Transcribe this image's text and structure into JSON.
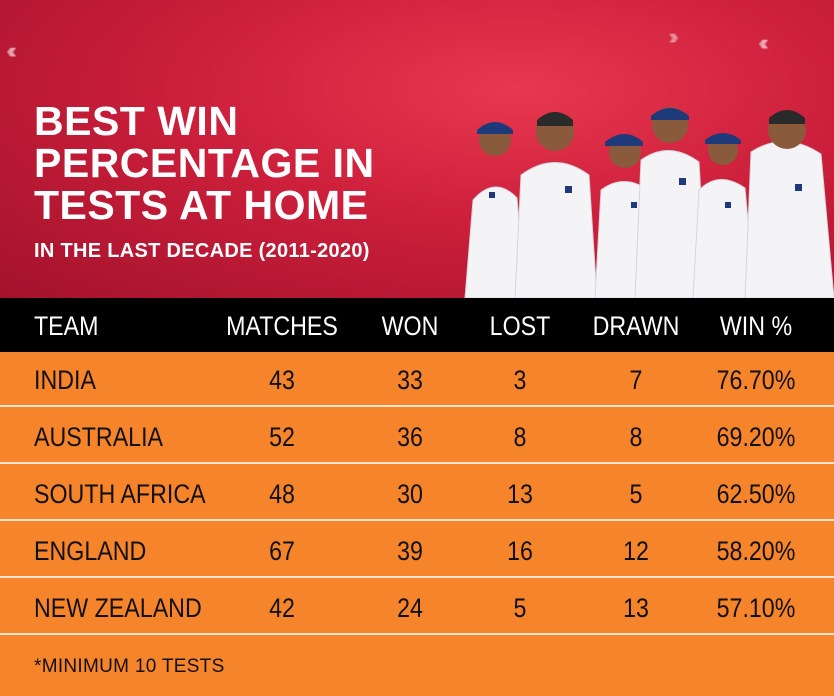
{
  "title_lines": [
    "BEST WIN",
    "PERCENTAGE IN",
    "TESTS AT HOME"
  ],
  "subtitle": "IN THE LAST DECADE (2011-2020)",
  "footnote": "*MINIMUM 10 TESTS",
  "colors": {
    "header_red": "#cc1f3b",
    "table_orange": "#f6842a",
    "header_bar": "#000000"
  },
  "chart_data": {
    "type": "table",
    "columns": [
      "TEAM",
      "MATCHES",
      "WON",
      "LOST",
      "DRAWN",
      "WIN %"
    ],
    "rows": [
      [
        "INDIA",
        "43",
        "33",
        "3",
        "7",
        "76.70%"
      ],
      [
        "AUSTRALIA",
        "52",
        "36",
        "8",
        "8",
        "69.20%"
      ],
      [
        "SOUTH AFRICA",
        "48",
        "30",
        "13",
        "5",
        "62.50%"
      ],
      [
        "ENGLAND",
        "67",
        "39",
        "16",
        "12",
        "58.20%"
      ],
      [
        "NEW ZEALAND",
        "42",
        "24",
        "5",
        "13",
        "57.10%"
      ]
    ]
  }
}
